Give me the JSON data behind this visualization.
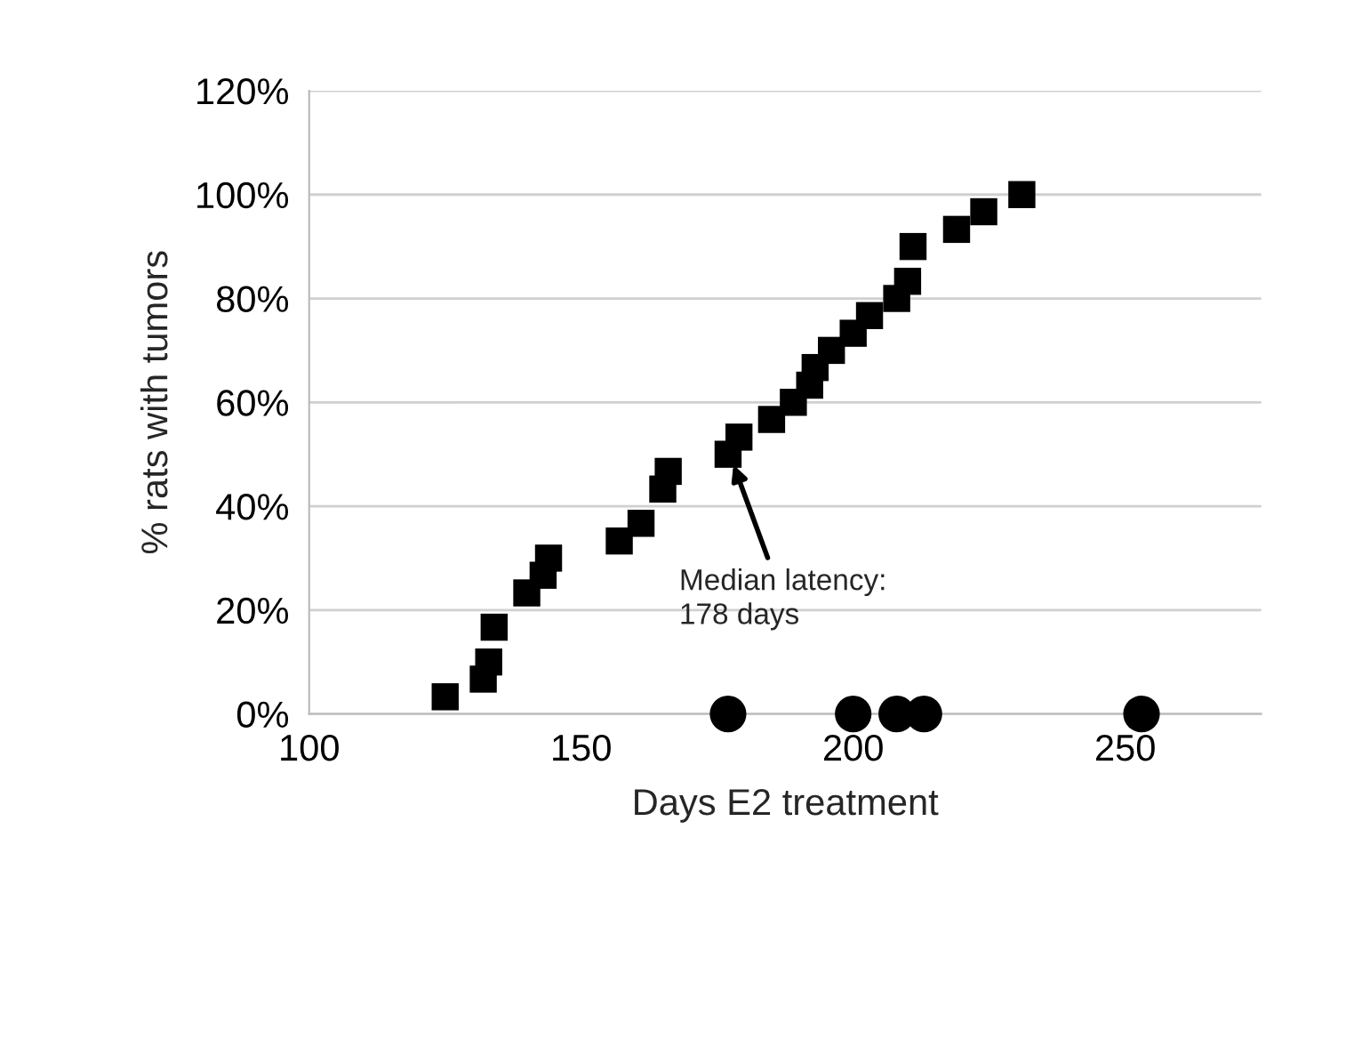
{
  "chart_data": {
    "type": "scatter",
    "xlabel": "Days E2 treatment",
    "ylabel": "% rats with tumors",
    "series": [
      {
        "color": "#000000",
        "marker": "square",
        "x": [
          125,
          132,
          133,
          134,
          140,
          143,
          144,
          157,
          161,
          165,
          166,
          177,
          179,
          185,
          189,
          192,
          193,
          196,
          200,
          203,
          208,
          210,
          211,
          219,
          224,
          231
        ],
        "values": [
          3.3,
          6.7,
          10,
          16.7,
          23.3,
          26.7,
          30,
          33.3,
          36.7,
          43.3,
          46.7,
          50,
          53.3,
          56.7,
          60,
          63.3,
          66.7,
          70,
          73.3,
          76.7,
          80,
          83.3,
          90,
          93.3,
          96.7,
          100
        ]
      },
      {
        "color": "#000000",
        "marker": "circle",
        "x": [
          177,
          200,
          208,
          213,
          253
        ],
        "values": [
          0,
          0,
          0,
          0,
          0
        ]
      }
    ],
    "xlim": [
      100,
      275
    ],
    "xticks": [
      100,
      150,
      200,
      250
    ],
    "ylim": [
      0,
      120
    ],
    "yticks": [
      {
        "value": 0,
        "label": "0%"
      },
      {
        "value": 20,
        "label": "20%"
      },
      {
        "value": 40,
        "label": "40%"
      },
      {
        "value": 60,
        "label": "60%"
      },
      {
        "value": 80,
        "label": "80%"
      },
      {
        "value": 100,
        "label": "100%"
      },
      {
        "value": 120,
        "label": "120%"
      }
    ],
    "grid": "y",
    "annotations": [
      {
        "text": "Median latency:\n178 days",
        "x": 178,
        "y": 48
      }
    ]
  }
}
